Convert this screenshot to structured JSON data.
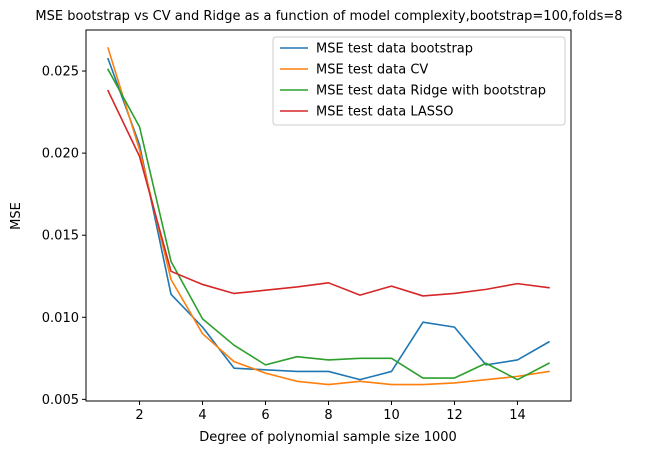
{
  "chart_data": {
    "type": "line",
    "title": "MSE bootstrap vs CV and Ridge as a function of model complexity,bootstrap=100,folds=8",
    "xlabel": "Degree of polynomial sample size 1000",
    "ylabel": "MSE",
    "xlim": [
      0.3,
      15.7
    ],
    "ylim": [
      0.0049,
      0.0275
    ],
    "xticks": [
      2,
      4,
      6,
      8,
      10,
      12,
      14
    ],
    "xtick_labels": [
      "2",
      "4",
      "6",
      "8",
      "10",
      "12",
      "14"
    ],
    "yticks": [
      0.005,
      0.01,
      0.015,
      0.02,
      0.025
    ],
    "ytick_labels": [
      "0.005",
      "0.010",
      "0.015",
      "0.020",
      "0.025"
    ],
    "grid": false,
    "legend_position": "top-right",
    "x": [
      1,
      2,
      3,
      4,
      5,
      6,
      7,
      8,
      9,
      10,
      11,
      12,
      13,
      14,
      15
    ],
    "series": [
      {
        "name": "MSE test data bootstrap",
        "color": "#1f77b4",
        "values": [
          0.02575,
          0.0205,
          0.0114,
          0.0094,
          0.0069,
          0.0068,
          0.0067,
          0.0067,
          0.0062,
          0.0067,
          0.0097,
          0.0094,
          0.0071,
          0.0074,
          0.0085
        ]
      },
      {
        "name": "MSE test data CV",
        "color": "#ff7f0e",
        "values": [
          0.0264,
          0.0202,
          0.0123,
          0.009,
          0.0073,
          0.0066,
          0.0061,
          0.0059,
          0.0061,
          0.0059,
          0.0059,
          0.006,
          0.0062,
          0.0064,
          0.0067
        ]
      },
      {
        "name": "MSE test data Ridge with bootstrap",
        "color": "#2ca02c",
        "values": [
          0.0251,
          0.0216,
          0.0134,
          0.0099,
          0.0083,
          0.0071,
          0.0076,
          0.0074,
          0.0075,
          0.0075,
          0.0063,
          0.0063,
          0.0072,
          0.0062,
          0.0072
        ]
      },
      {
        "name": "MSE test data LASSO",
        "color": "#d62728",
        "values": [
          0.0238,
          0.0198,
          0.0128,
          0.012,
          0.01145,
          0.01165,
          0.01185,
          0.0121,
          0.01135,
          0.0119,
          0.0113,
          0.01145,
          0.0117,
          0.01205,
          0.0118
        ]
      }
    ]
  }
}
